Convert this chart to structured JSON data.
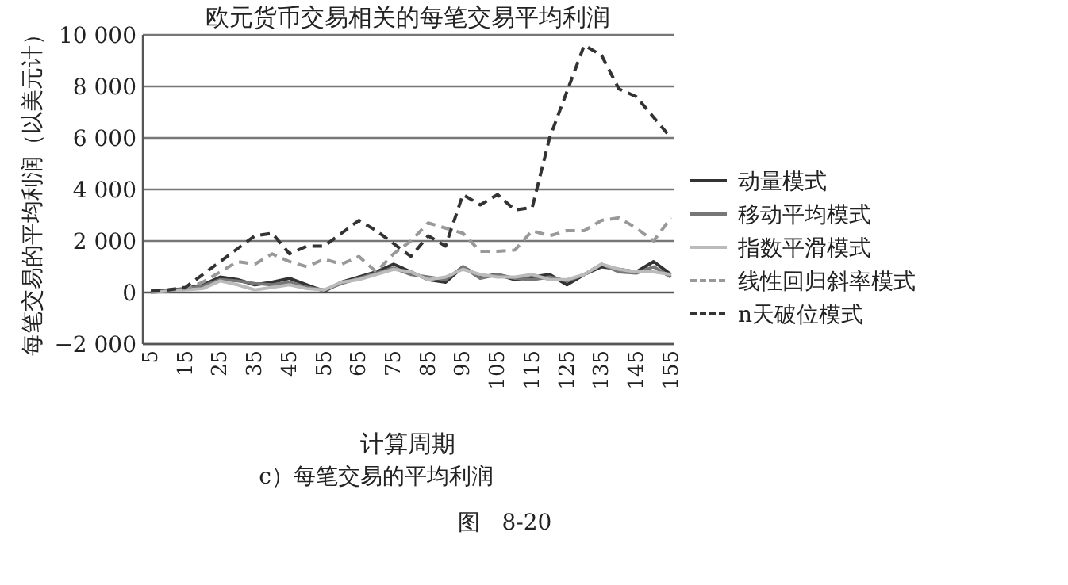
{
  "chart_data": {
    "type": "line",
    "title": "欧元货币交易相关的每笔交易平均利润",
    "xlabel": "计算周期",
    "ylabel": "每笔交易的平均利润（以美元计）",
    "x": [
      5,
      10,
      15,
      20,
      25,
      30,
      35,
      40,
      45,
      50,
      55,
      60,
      65,
      70,
      75,
      80,
      85,
      90,
      95,
      100,
      105,
      110,
      115,
      120,
      125,
      130,
      135,
      140,
      145,
      150,
      155
    ],
    "xlim": [
      2.7,
      156
    ],
    "xticks": [
      5,
      15,
      25,
      35,
      45,
      55,
      65,
      75,
      85,
      95,
      105,
      115,
      125,
      135,
      145,
      155
    ],
    "ylim": [
      -2000,
      10000
    ],
    "yticks": [
      {
        "value": -2000,
        "label": "−2 000"
      },
      0,
      {
        "value": 2000,
        "label": "2 000"
      },
      {
        "value": 4000,
        "label": "4 000"
      },
      {
        "value": 6000,
        "label": "6 000"
      },
      {
        "value": 8000,
        "label": "8 000"
      },
      {
        "value": 10000,
        "label": "10 000"
      }
    ],
    "grid": "y",
    "legend": "right",
    "series": [
      {
        "name": "动量模式",
        "color": "#333333",
        "line_style": "solid",
        "values": [
          50,
          100,
          150,
          300,
          600,
          500,
          300,
          400,
          550,
          300,
          50,
          400,
          600,
          800,
          1100,
          800,
          500,
          400,
          1000,
          600,
          700,
          500,
          600,
          700,
          300,
          700,
          1000,
          900,
          800,
          1200,
          700
        ]
      },
      {
        "name": "移动平均模式",
        "color": "#777777",
        "line_style": "solid",
        "values": [
          0,
          80,
          150,
          250,
          500,
          450,
          350,
          300,
          400,
          200,
          100,
          350,
          550,
          750,
          950,
          700,
          600,
          500,
          1000,
          550,
          700,
          550,
          500,
          600,
          450,
          700,
          1100,
          800,
          750,
          1000,
          600
        ]
      },
      {
        "name": "指数平滑模式",
        "color": "#bbbbbb",
        "line_style": "solid",
        "values": [
          0,
          50,
          100,
          150,
          450,
          300,
          100,
          200,
          300,
          150,
          100,
          400,
          500,
          700,
          900,
          800,
          500,
          600,
          900,
          700,
          600,
          600,
          700,
          500,
          500,
          700,
          1100,
          900,
          800,
          800,
          700
        ]
      },
      {
        "name": "线性回归斜率模式",
        "color": "#999999",
        "line_style": "dashed",
        "values": [
          0,
          80,
          150,
          400,
          800,
          1200,
          1100,
          1500,
          1200,
          1000,
          1300,
          1100,
          1400,
          800,
          1500,
          2000,
          2700,
          2500,
          2300,
          1600,
          1600,
          1650,
          2400,
          2200,
          2400,
          2400,
          2800,
          2900,
          2500,
          2000,
          2900
        ]
      },
      {
        "name": "n天破位模式",
        "color": "#333333",
        "line_style": "dashed",
        "values": [
          50,
          100,
          200,
          700,
          1200,
          1700,
          2200,
          2300,
          1500,
          1800,
          1800,
          2300,
          2800,
          2400,
          1900,
          1400,
          2200,
          1800,
          3800,
          3400,
          3800,
          3200,
          3300,
          6000,
          7800,
          9600,
          9200,
          7900,
          7600,
          6800,
          6000
        ]
      }
    ],
    "annotations": [
      "c）每笔交易的平均利润",
      "图　8-20"
    ]
  }
}
